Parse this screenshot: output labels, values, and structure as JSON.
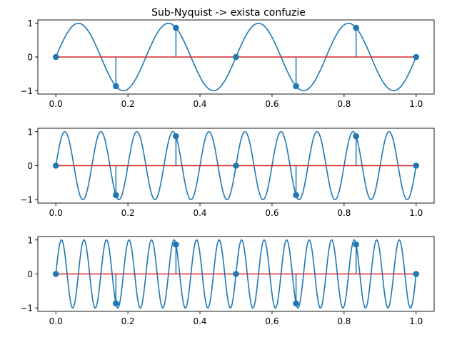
{
  "figure": {
    "title": "Sub-Nyquist -> exista confuzie"
  },
  "colors": {
    "signal": "#1f77b4",
    "stem": "#1f77b4",
    "baseline": "#d62728",
    "marker": "#1f77b4"
  },
  "chart_data": [
    {
      "type": "line",
      "description_role": "continuous sine overlaid with sampled stem plot",
      "title": "Sub-Nyquist -> exista confuzie",
      "signal": {
        "function": "sin",
        "frequency_hz": 4
      },
      "samples": {
        "x": [
          0.0,
          0.16666667,
          0.33333333,
          0.5,
          0.66666667,
          0.83333333,
          1.0
        ],
        "y": [
          0.0,
          -0.866,
          0.866,
          0.0,
          -0.866,
          0.866,
          0.0
        ]
      },
      "xlim": [
        -0.05,
        1.05
      ],
      "ylim": [
        -1.1,
        1.1
      ],
      "xticks": [
        0.0,
        0.2,
        0.4,
        0.6,
        0.8,
        1.0
      ],
      "xtick_labels": [
        "0.0",
        "0.2",
        "0.4",
        "0.6",
        "0.8",
        "1.0"
      ],
      "yticks": [
        -1,
        0,
        1
      ],
      "ytick_labels": [
        "−1",
        "0",
        "1"
      ],
      "grid": false
    },
    {
      "type": "line",
      "description_role": "continuous sine overlaid with sampled stem plot",
      "title": "",
      "signal": {
        "function": "sin",
        "frequency_hz": 10
      },
      "samples": {
        "x": [
          0.0,
          0.16666667,
          0.33333333,
          0.5,
          0.66666667,
          0.83333333,
          1.0
        ],
        "y": [
          0.0,
          -0.866,
          0.866,
          0.0,
          -0.866,
          0.866,
          0.0
        ]
      },
      "xlim": [
        -0.05,
        1.05
      ],
      "ylim": [
        -1.1,
        1.1
      ],
      "xticks": [
        0.0,
        0.2,
        0.4,
        0.6,
        0.8,
        1.0
      ],
      "xtick_labels": [
        "0.0",
        "0.2",
        "0.4",
        "0.6",
        "0.8",
        "1.0"
      ],
      "yticks": [
        -1,
        0,
        1
      ],
      "ytick_labels": [
        "−1",
        "0",
        "1"
      ],
      "grid": false
    },
    {
      "type": "line",
      "description_role": "continuous sine overlaid with sampled stem plot",
      "title": "",
      "signal": {
        "function": "sin",
        "frequency_hz": 16
      },
      "samples": {
        "x": [
          0.0,
          0.16666667,
          0.33333333,
          0.5,
          0.66666667,
          0.83333333,
          1.0
        ],
        "y": [
          0.0,
          -0.866,
          0.866,
          0.0,
          -0.866,
          0.866,
          0.0
        ]
      },
      "xlim": [
        -0.05,
        1.05
      ],
      "ylim": [
        -1.1,
        1.1
      ],
      "xticks": [
        0.0,
        0.2,
        0.4,
        0.6,
        0.8,
        1.0
      ],
      "xtick_labels": [
        "0.0",
        "0.2",
        "0.4",
        "0.6",
        "0.8",
        "1.0"
      ],
      "yticks": [
        -1,
        0,
        1
      ],
      "ytick_labels": [
        "−1",
        "0",
        "1"
      ],
      "grid": false
    }
  ]
}
